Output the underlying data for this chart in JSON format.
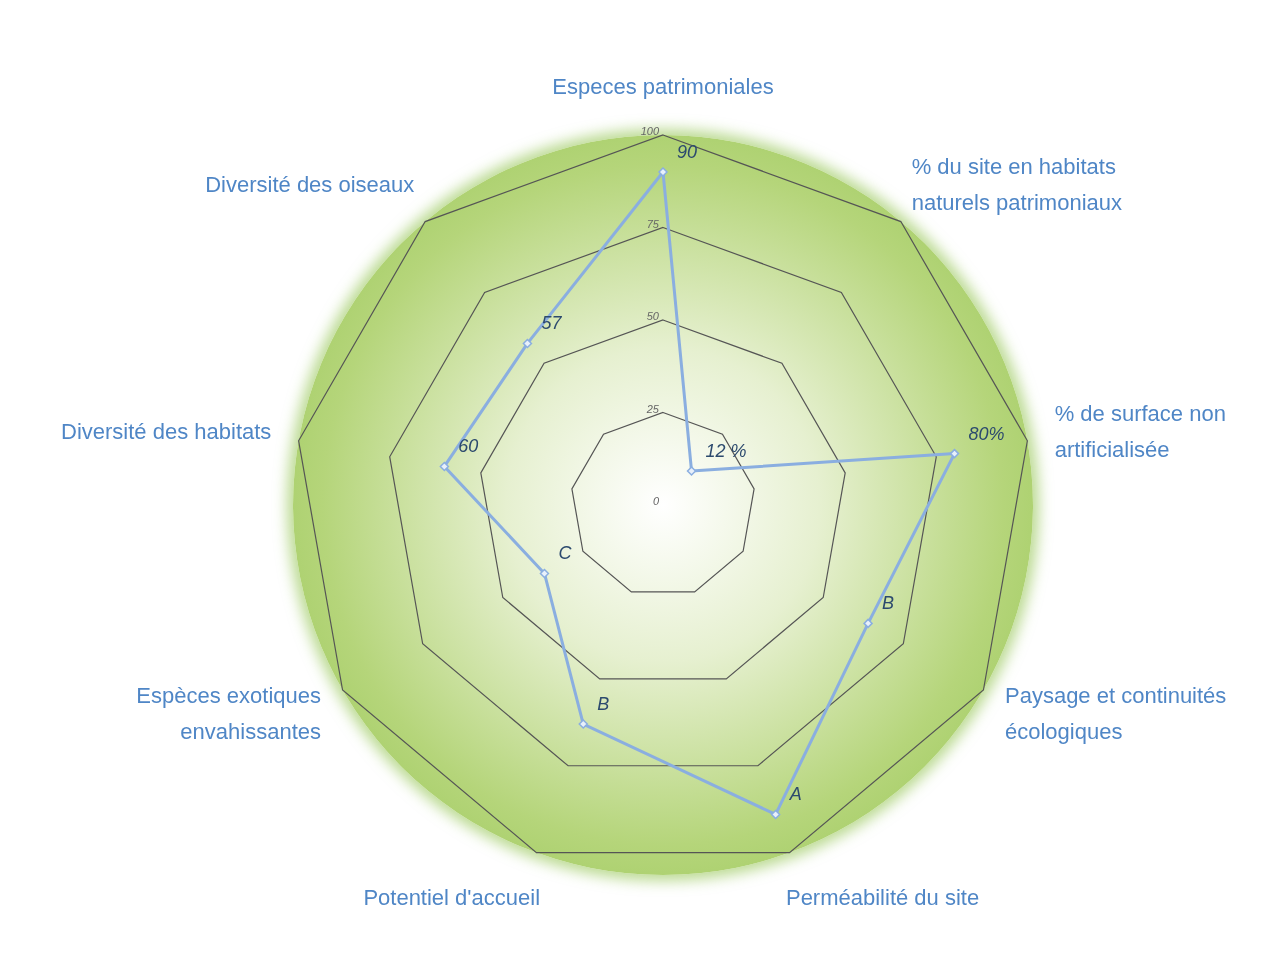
{
  "chart_data": {
    "type": "radar",
    "categories": [
      "Especes patrimoniales",
      "% du site en habitats naturels patrimoniaux",
      "%  de surface non artificialisée",
      "Paysage et continuités écologiques",
      "Perméabilité du site",
      "Potentiel d'accueil",
      "Espèces exotiques envahissantes",
      "Diversité des habitats",
      "Diversité des oiseaux"
    ],
    "series": [
      {
        "color": "#8aaee0",
        "values": [
          90,
          12,
          80,
          64,
          89,
          63,
          37,
          60,
          57
        ],
        "value_labels": [
          "90",
          "12 %",
          "80%",
          "B",
          "A",
          "B",
          "C",
          "60",
          "57"
        ]
      }
    ],
    "ylim": [
      0,
      100
    ],
    "yticks": [
      0,
      25,
      50,
      75,
      100
    ],
    "grid": true,
    "marker": "diamond",
    "line_style": "solid"
  }
}
